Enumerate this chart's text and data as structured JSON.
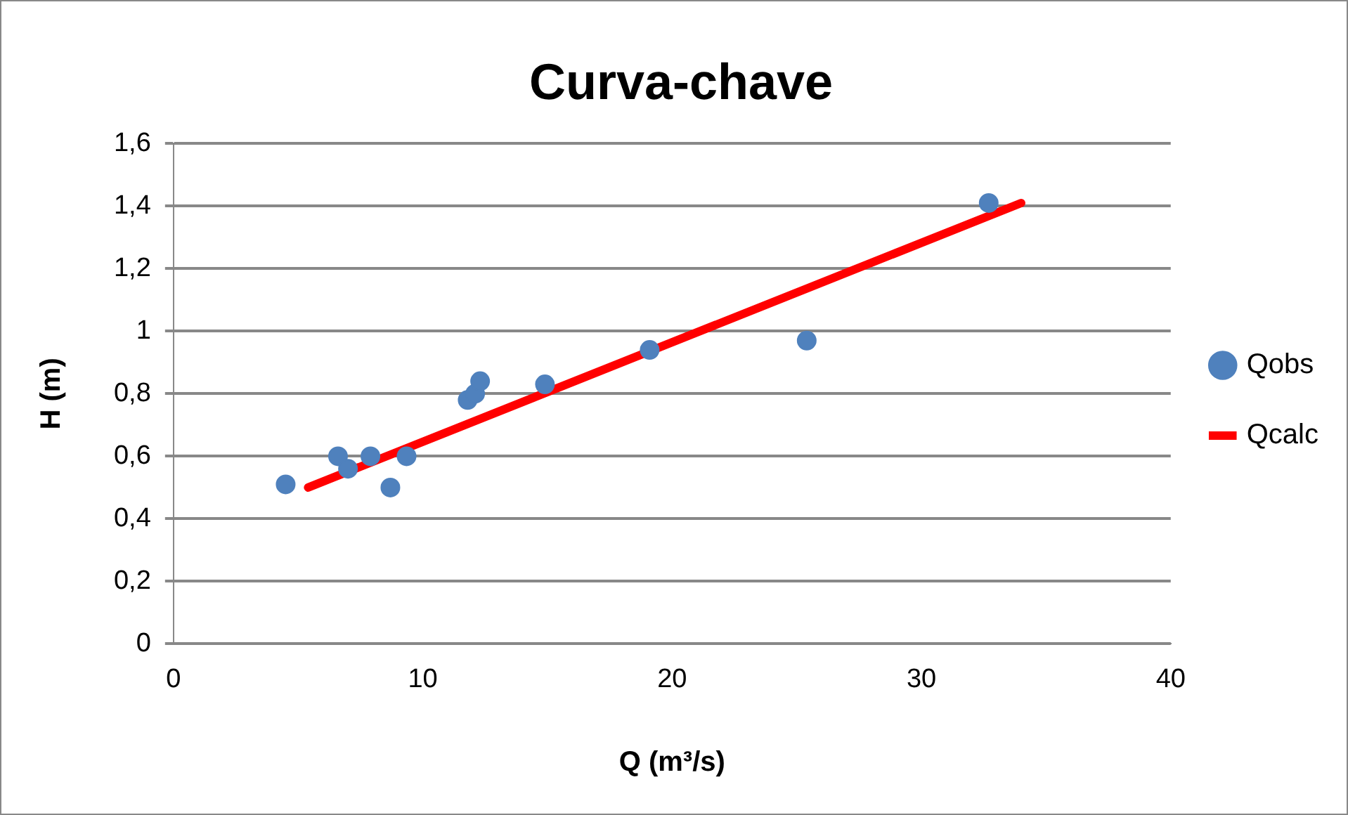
{
  "chart_data": {
    "type": "scatter",
    "title": "Curva-chave",
    "xlabel": "Q (m³/s)",
    "ylabel": "H (m)",
    "xlim": [
      0,
      40
    ],
    "xticks": [
      0,
      10,
      20,
      30,
      40
    ],
    "ylim": [
      0,
      1.6
    ],
    "yticks": [
      0,
      {
        "value": 0.2,
        "label": "0,2"
      },
      {
        "value": 0.4,
        "label": "0,4"
      },
      {
        "value": 0.6,
        "label": "0,6"
      },
      {
        "value": 0.8,
        "label": "0,8"
      },
      1,
      {
        "value": 1.2,
        "label": "1,2"
      },
      {
        "value": 1.4,
        "label": "1,4"
      },
      {
        "value": 1.6,
        "label": "1,6"
      }
    ],
    "grid": "y",
    "legend": "right",
    "series": [
      {
        "name": "Qobs",
        "marker": "circle",
        "color": "#4f81bd",
        "x": [
          4.5,
          6.6,
          7.0,
          7.9,
          8.7,
          9.35,
          11.8,
          12.1,
          12.3,
          14.9,
          19.1,
          25.4,
          32.7
        ],
        "values": [
          0.51,
          0.6,
          0.56,
          0.6,
          0.5,
          0.6,
          0.78,
          0.8,
          0.84,
          0.83,
          0.94,
          0.97,
          1.41
        ]
      },
      {
        "name": "Qcalc",
        "type": "line",
        "marker": "none",
        "color": "#ff0000",
        "x": [
          5.4,
          34.0
        ],
        "values": [
          0.5,
          1.41
        ]
      }
    ]
  }
}
